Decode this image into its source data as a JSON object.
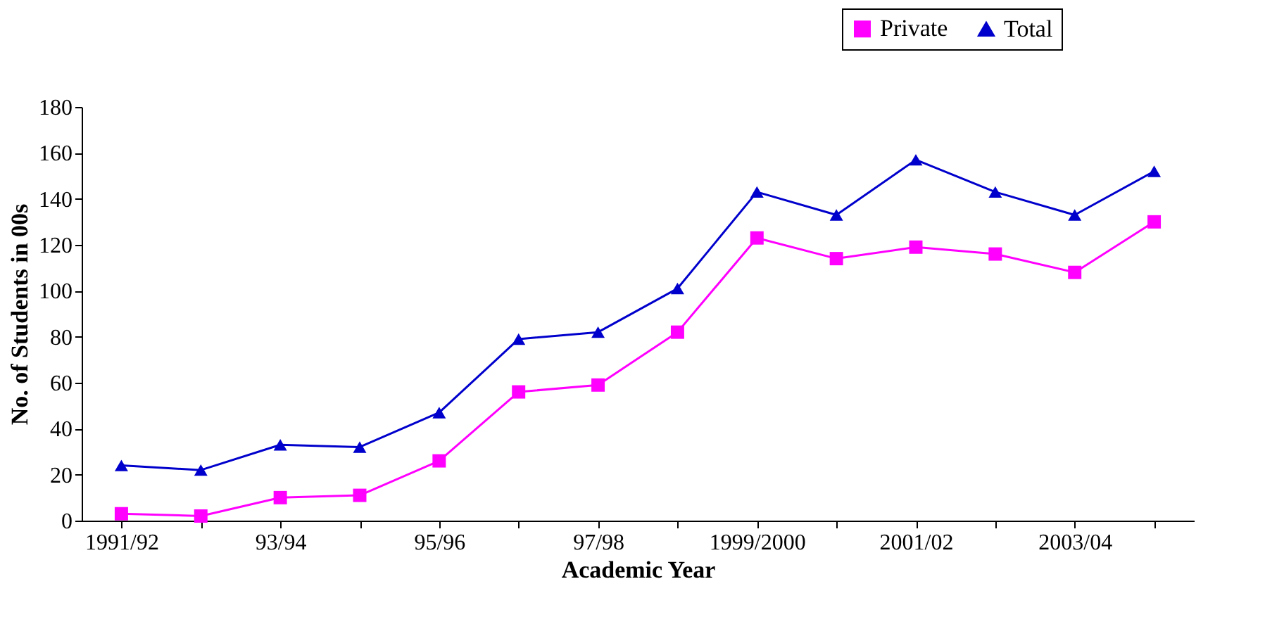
{
  "chart_data": {
    "type": "line",
    "xlabel": "Academic Year",
    "ylabel": "No. of Students in 00s",
    "categories": [
      "1991/92",
      null,
      "93/94",
      null,
      "95/96",
      null,
      "97/98",
      null,
      "1999/2000",
      null,
      "2001/02",
      null,
      "2003/04",
      null
    ],
    "series": [
      {
        "name": "Private",
        "color": "#ff00ff",
        "marker": "square",
        "values": [
          3,
          2,
          10,
          11,
          26,
          56,
          59,
          82,
          123,
          114,
          119,
          116,
          108,
          130
        ]
      },
      {
        "name": "Total",
        "color": "#0000cc",
        "marker": "triangle",
        "values": [
          24,
          22,
          33,
          32,
          47,
          79,
          82,
          101,
          143,
          133,
          157,
          143,
          133,
          152
        ]
      }
    ],
    "ylim": [
      0,
      180
    ],
    "yticks": [
      0,
      20,
      40,
      60,
      80,
      100,
      120,
      140,
      160,
      180
    ],
    "grid": false,
    "legend": "top right",
    "line_style": "solid"
  }
}
